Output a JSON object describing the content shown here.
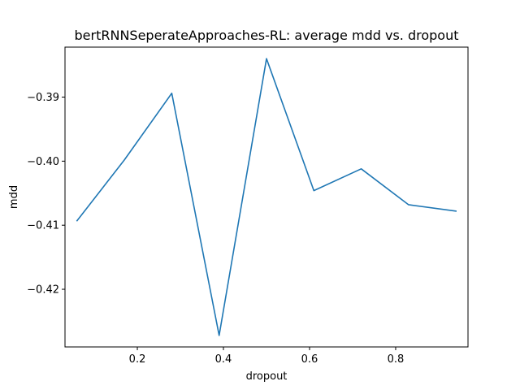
{
  "chart_data": {
    "type": "line",
    "title": "bertRNNSeperateApproaches-RL: average mdd vs. dropout",
    "xlabel": "dropout",
    "ylabel": "mdd",
    "grid": false,
    "xlim": [
      0.032,
      0.968
    ],
    "ylim": [
      -0.429,
      -0.3822
    ],
    "xticks": [
      0.2,
      0.4,
      0.6,
      0.8
    ],
    "xtick_labels": [
      "0.2",
      "0.4",
      "0.6",
      "0.8"
    ],
    "yticks": [
      -0.42,
      -0.41,
      -0.4,
      -0.39
    ],
    "ytick_labels": [
      "−0.42",
      "−0.41",
      "−0.40",
      "−0.39"
    ],
    "series": [
      {
        "color": "#1f77b4",
        "x": [
          0.06,
          0.17,
          0.28,
          0.39,
          0.5,
          0.61,
          0.72,
          0.83,
          0.94
        ],
        "y": [
          -0.4093,
          -0.3998,
          -0.3894,
          -0.4272,
          -0.384,
          -0.4046,
          -0.4012,
          -0.4068,
          -0.4078
        ]
      }
    ]
  }
}
